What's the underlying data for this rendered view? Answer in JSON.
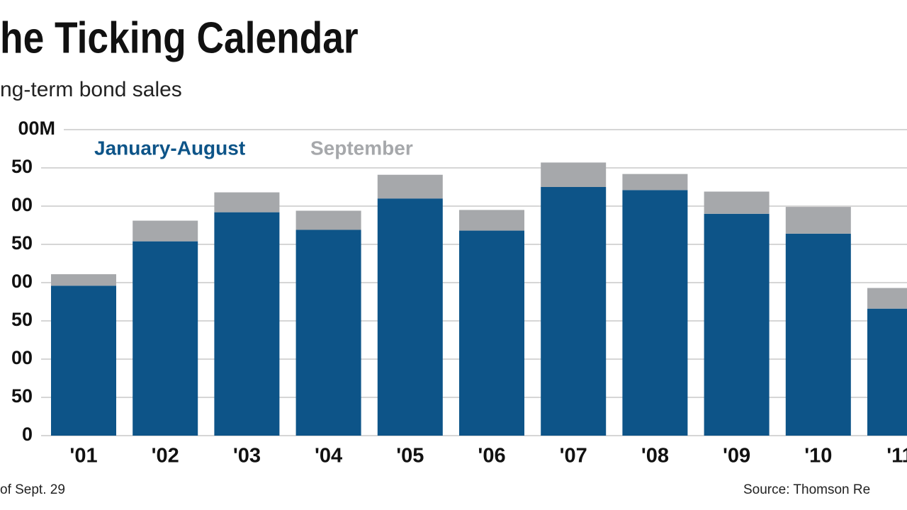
{
  "chart_data": {
    "type": "bar",
    "stacked": true,
    "title": "he Ticking Calendar",
    "subtitle": "ng-term bond sales",
    "note": "of Sept. 29",
    "source": "Source: Thomson Re",
    "categories": [
      "'01",
      "'02",
      "'03",
      "'04",
      "'05",
      "'06",
      "'07",
      "'08",
      "'09",
      "'10",
      "'11"
    ],
    "series": [
      {
        "name": "January-August",
        "color": "#0d5488",
        "values": [
          196,
          254,
          292,
          269,
          310,
          268,
          325,
          321,
          290,
          264,
          166
        ]
      },
      {
        "name": "September",
        "color": "#a6a8ab",
        "values": [
          15,
          27,
          26,
          25,
          31,
          27,
          32,
          21,
          29,
          35,
          27
        ]
      }
    ],
    "ylim": [
      0,
      400
    ],
    "yticks": [
      0,
      {
        "value": 50,
        "label": "50"
      },
      {
        "value": 100,
        "label": "00"
      },
      {
        "value": 150,
        "label": "50"
      },
      {
        "value": 200,
        "label": "00"
      },
      {
        "value": 250,
        "label": "50"
      },
      {
        "value": 300,
        "label": "00"
      },
      {
        "value": 350,
        "label": "50"
      },
      {
        "value": 400,
        "label": "00M"
      }
    ],
    "grid": true
  }
}
